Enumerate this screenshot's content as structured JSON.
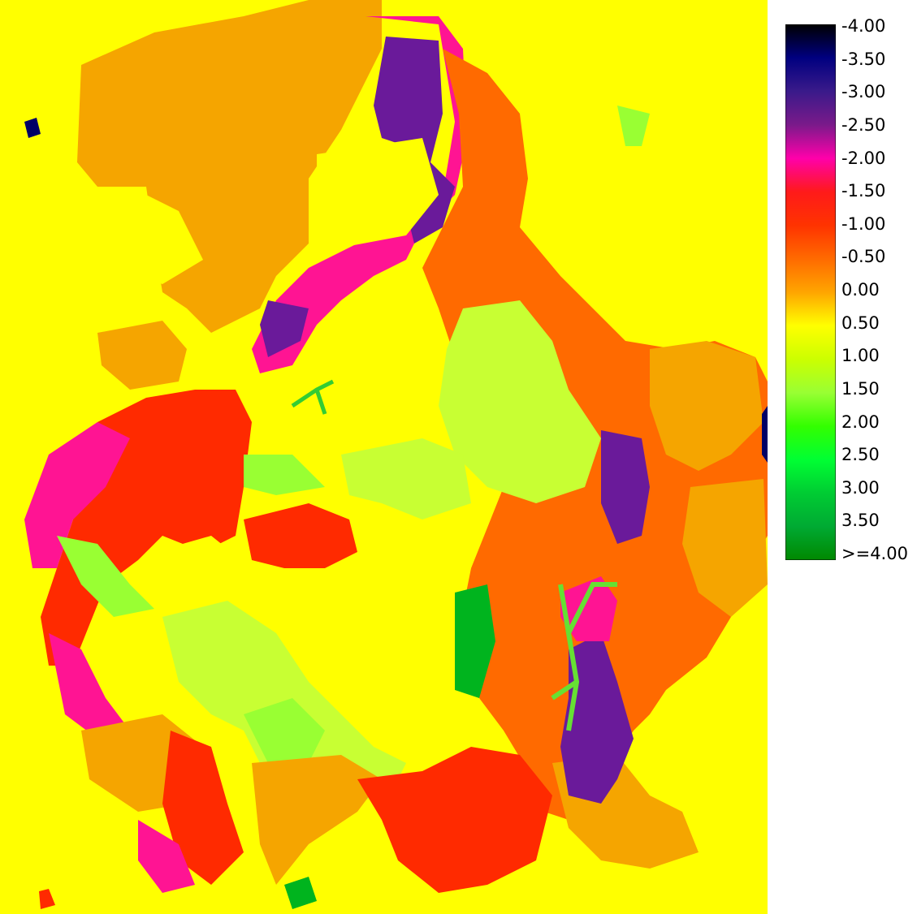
{
  "legend": {
    "labels": [
      "-4.00",
      "-3.50",
      "-3.00",
      "-2.50",
      "-2.00",
      "-1.50",
      "-1.00",
      "-0.50",
      "0.00",
      "0.50",
      "1.00",
      "1.50",
      "2.00",
      "2.50",
      "3.00",
      "3.50",
      ">=4.00"
    ],
    "colors": [
      "#000000",
      "#000080",
      "#3a1a8a",
      "#7a1a8a",
      "#ff00aa",
      "#ff1a1a",
      "#ff3300",
      "#ff6a00",
      "#ffa500",
      "#ffff00",
      "#ccff00",
      "#99ff33",
      "#33ff00",
      "#00ff33",
      "#00cc33",
      "#00aa33",
      "#008800"
    ]
  },
  "map": {
    "background": "#ffff00",
    "region_colors": {
      "yellow": "#ffff00",
      "orange": "#f5a500",
      "dark_orange": "#ff6a00",
      "red": "#ff2a00",
      "magenta": "#ff1493",
      "purple": "#6a1a9a",
      "light_green": "#c8ff33",
      "lime": "#99ff33",
      "green": "#00b41e",
      "navy": "#000066"
    }
  }
}
